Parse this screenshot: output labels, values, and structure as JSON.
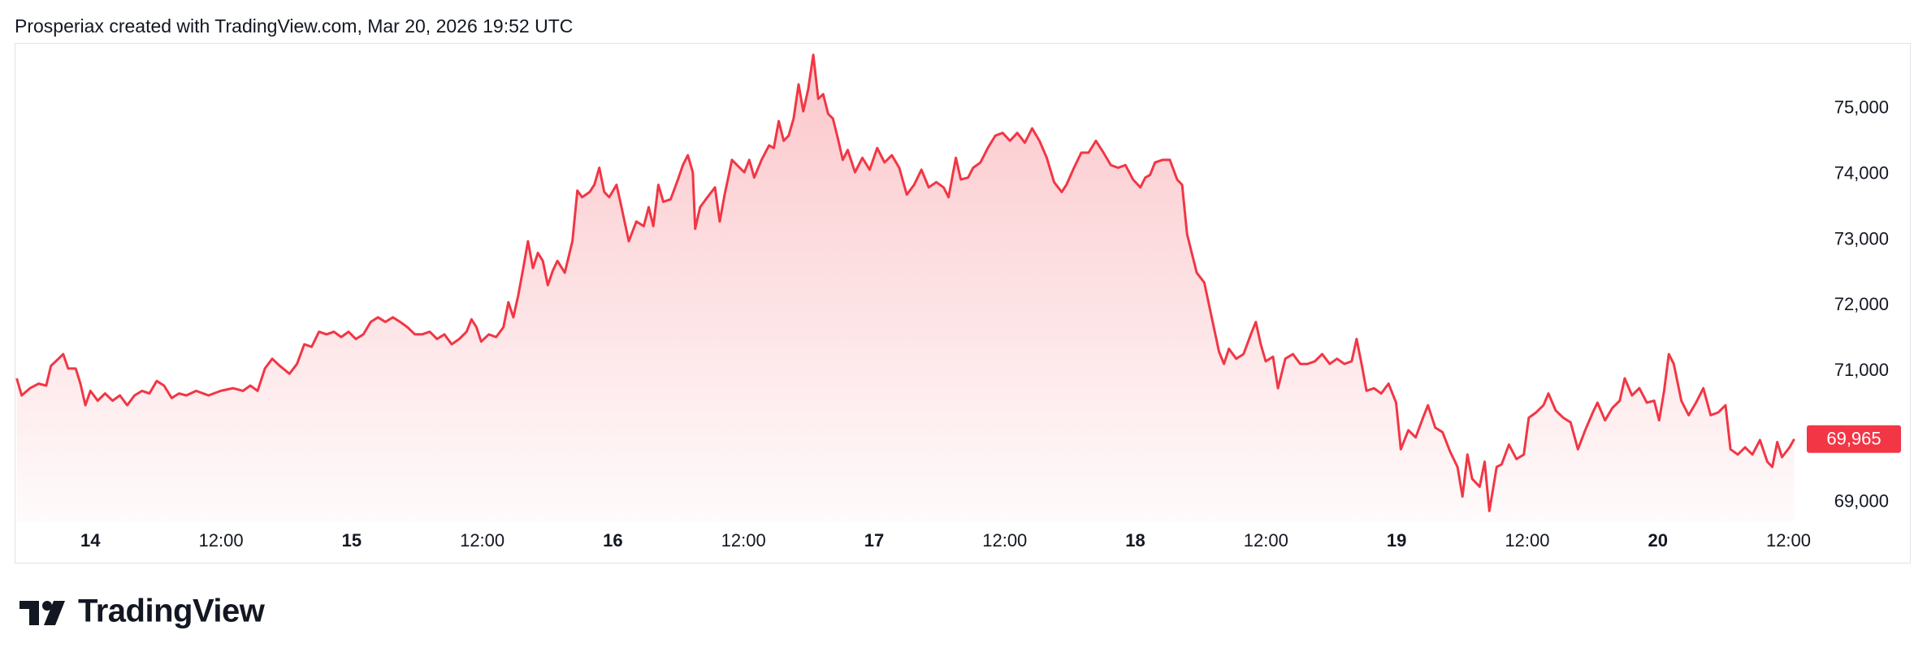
{
  "header": {
    "caption": "Prosperiax created with TradingView.com, Mar 20, 2026 19:52 UTC"
  },
  "chart_data": {
    "type": "area",
    "color": "#f23645",
    "x": [
      13.718,
      13.737,
      13.769,
      13.802,
      13.831,
      13.849,
      13.878,
      13.896,
      13.915,
      13.944,
      13.962,
      13.981,
      14.0,
      14.028,
      14.056,
      14.085,
      14.113,
      14.141,
      14.169,
      14.198,
      14.226,
      14.254,
      14.282,
      14.311,
      14.339,
      14.367,
      14.405,
      14.452,
      14.499,
      14.546,
      14.584,
      14.612,
      14.64,
      14.668,
      14.696,
      14.725,
      14.762,
      14.791,
      14.819,
      14.847,
      14.875,
      14.904,
      14.932,
      14.96,
      14.988,
      15.016,
      15.045,
      15.073,
      15.101,
      15.129,
      15.158,
      15.186,
      15.214,
      15.242,
      15.27,
      15.299,
      15.327,
      15.355,
      15.383,
      15.412,
      15.44,
      15.459,
      15.478,
      15.496,
      15.525,
      15.553,
      15.581,
      15.6,
      15.619,
      15.638,
      15.657,
      15.675,
      15.694,
      15.713,
      15.732,
      15.751,
      15.77,
      15.788,
      15.816,
      15.845,
      15.864,
      15.882,
      15.911,
      15.929,
      15.948,
      15.967,
      15.986,
      16.014,
      16.033,
      16.061,
      16.09,
      16.118,
      16.137,
      16.155,
      16.174,
      16.193,
      16.221,
      16.249,
      16.268,
      16.287,
      16.306,
      16.315,
      16.334,
      16.362,
      16.391,
      16.409,
      16.428,
      16.456,
      16.475,
      16.503,
      16.522,
      16.541,
      16.569,
      16.598,
      16.616,
      16.635,
      16.654,
      16.673,
      16.692,
      16.711,
      16.729,
      16.748,
      16.767,
      16.786,
      16.805,
      16.824,
      16.842,
      16.861,
      16.88,
      16.899,
      16.927,
      16.955,
      16.983,
      17.012,
      17.04,
      17.068,
      17.096,
      17.125,
      17.153,
      17.181,
      17.209,
      17.238,
      17.266,
      17.285,
      17.313,
      17.332,
      17.36,
      17.379,
      17.407,
      17.435,
      17.464,
      17.492,
      17.52,
      17.548,
      17.577,
      17.605,
      17.633,
      17.661,
      17.689,
      17.718,
      17.736,
      17.765,
      17.793,
      17.821,
      17.849,
      17.878,
      17.906,
      17.934,
      17.962,
      17.991,
      18.019,
      18.038,
      18.056,
      18.075,
      18.104,
      18.132,
      18.16,
      18.179,
      18.198,
      18.216,
      18.235,
      18.264,
      18.292,
      18.32,
      18.339,
      18.358,
      18.386,
      18.414,
      18.442,
      18.461,
      18.48,
      18.499,
      18.527,
      18.546,
      18.574,
      18.603,
      18.631,
      18.659,
      18.687,
      18.715,
      18.744,
      18.772,
      18.8,
      18.828,
      18.847,
      18.866,
      18.885,
      18.913,
      18.941,
      18.969,
      18.998,
      19.016,
      19.045,
      19.073,
      19.101,
      19.12,
      19.148,
      19.176,
      19.205,
      19.233,
      19.252,
      19.271,
      19.289,
      19.318,
      19.337,
      19.355,
      19.383,
      19.402,
      19.43,
      19.459,
      19.487,
      19.506,
      19.534,
      19.562,
      19.581,
      19.609,
      19.638,
      19.666,
      19.694,
      19.722,
      19.751,
      19.769,
      19.798,
      19.826,
      19.854,
      19.873,
      19.901,
      19.929,
      19.958,
      19.986,
      20.005,
      20.024,
      20.042,
      20.061,
      20.09,
      20.118,
      20.146,
      20.174,
      20.202,
      20.231,
      20.259,
      20.278,
      20.306,
      20.334,
      20.362,
      20.391,
      20.419,
      20.438,
      20.457,
      20.475,
      20.504,
      20.522
    ],
    "values": [
      70890,
      70630,
      70740,
      70810,
      70780,
      71080,
      71190,
      71260,
      71040,
      71040,
      70810,
      70480,
      70700,
      70550,
      70660,
      70550,
      70630,
      70480,
      70630,
      70700,
      70660,
      70850,
      70780,
      70590,
      70660,
      70630,
      70700,
      70630,
      70700,
      70740,
      70700,
      70780,
      70700,
      71040,
      71190,
      71080,
      70960,
      71110,
      71410,
      71370,
      71600,
      71560,
      71600,
      71520,
      71600,
      71490,
      71560,
      71750,
      71820,
      71750,
      71820,
      71750,
      71670,
      71560,
      71560,
      71600,
      71490,
      71560,
      71410,
      71490,
      71600,
      71790,
      71670,
      71450,
      71560,
      71520,
      71670,
      72050,
      71820,
      72160,
      72570,
      72980,
      72570,
      72800,
      72680,
      72310,
      72530,
      72680,
      72500,
      72980,
      73750,
      73650,
      73730,
      73840,
      74100,
      73730,
      73650,
      73840,
      73500,
      72980,
      73280,
      73210,
      73500,
      73210,
      73840,
      73580,
      73620,
      73920,
      74140,
      74290,
      74030,
      73170,
      73500,
      73650,
      73800,
      73280,
      73690,
      74220,
      74140,
      74030,
      74220,
      73950,
      74220,
      74440,
      74400,
      74810,
      74510,
      74590,
      74850,
      75370,
      74960,
      75300,
      75820,
      75150,
      75220,
      74920,
      74850,
      74550,
      74220,
      74370,
      74030,
      74250,
      74070,
      74400,
      74180,
      74290,
      74100,
      73690,
      73840,
      74070,
      73800,
      73880,
      73800,
      73650,
      74250,
      73920,
      73950,
      74100,
      74180,
      74400,
      74590,
      74630,
      74510,
      74630,
      74480,
      74700,
      74510,
      74250,
      73880,
      73730,
      73840,
      74100,
      74330,
      74330,
      74510,
      74330,
      74140,
      74100,
      74140,
      73920,
      73800,
      73950,
      73990,
      74180,
      74220,
      74220,
      73920,
      73840,
      73090,
      72800,
      72500,
      72350,
      71820,
      71300,
      71110,
      71340,
      71190,
      71260,
      71560,
      71750,
      71410,
      71150,
      71220,
      70740,
      71190,
      71260,
      71110,
      71110,
      71150,
      71260,
      71110,
      71190,
      71110,
      71150,
      71490,
      71110,
      70700,
      70740,
      70660,
      70810,
      70520,
      69810,
      70100,
      69990,
      70290,
      70480,
      70140,
      70070,
      69770,
      69540,
      69090,
      69730,
      69360,
      69240,
      69620,
      68870,
      69540,
      69580,
      69880,
      69660,
      69730,
      70290,
      70370,
      70480,
      70660,
      70400,
      70290,
      70220,
      69810,
      70100,
      70370,
      70520,
      70250,
      70440,
      70550,
      70890,
      70630,
      70740,
      70520,
      70550,
      70250,
      70700,
      71260,
      71110,
      70550,
      70330,
      70520,
      70740,
      70330,
      70370,
      70480,
      69810,
      69730,
      69840,
      69730,
      69950,
      69620,
      69540,
      69920,
      69690,
      69840,
      69965
    ],
    "last_price_label": "69,965",
    "xlim": [
      13.71,
      20.57
    ],
    "xticks": [
      14,
      {
        "value": 14.5,
        "label": "12:00"
      },
      15,
      {
        "value": 15.5,
        "label": "12:00"
      },
      16,
      {
        "value": 16.5,
        "label": "12:00"
      },
      17,
      {
        "value": 17.5,
        "label": "12:00"
      },
      18,
      {
        "value": 18.5,
        "label": "12:00"
      },
      19,
      {
        "value": 19.5,
        "label": "12:00"
      },
      20,
      {
        "value": 20.5,
        "label": "12:00"
      }
    ],
    "ylim": [
      68700,
      76000
    ],
    "yticks": [
      {
        "value": 69000,
        "label": "69,000"
      },
      {
        "value": 71000,
        "label": "71,000"
      },
      {
        "value": 72000,
        "label": "72,000"
      },
      {
        "value": 73000,
        "label": "73,000"
      },
      {
        "value": 74000,
        "label": "74,000"
      },
      {
        "value": 75000,
        "label": "75,000"
      }
    ],
    "grid": false
  },
  "footer": {
    "brand": "TradingView"
  }
}
